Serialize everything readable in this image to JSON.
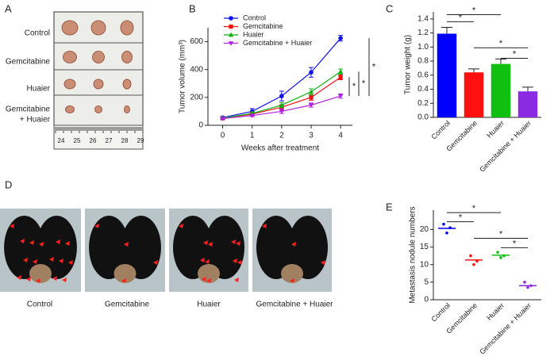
{
  "panel_labels": [
    "A",
    "B",
    "C",
    "D",
    "E"
  ],
  "photo_a": {
    "row_labels": [
      "Control",
      "Gemcitabine",
      "Huaier",
      "Gemcitabine",
      "+ Huaier"
    ],
    "ruler_ticks": [
      24,
      25,
      26,
      27,
      28,
      29
    ]
  },
  "photo_d": {
    "captions": [
      "Control",
      "Gemcitabine",
      "Huaier",
      "Gemcitabine + Huaier"
    ]
  },
  "chart_data": [
    {
      "type": "line",
      "x_label": "Weeks after treatment",
      "y_label": "Tumor volume (mm³)",
      "x": [
        0,
        1,
        2,
        3,
        4
      ],
      "xlim": [
        -0.5,
        4.4
      ],
      "xticks": [
        0,
        1,
        2,
        3,
        4
      ],
      "ylim": [
        0,
        700
      ],
      "yticks": [
        0,
        200,
        400,
        600
      ],
      "series": [
        {
          "name": "Control",
          "color": "#1010f0",
          "marker": "circle",
          "values": [
            55,
            100,
            210,
            380,
            625
          ],
          "errors": [
            8,
            20,
            35,
            35,
            20
          ]
        },
        {
          "name": "Gemcitabine",
          "color": "#f01010",
          "marker": "square",
          "values": [
            50,
            80,
            130,
            200,
            345
          ],
          "errors": [
            6,
            10,
            18,
            20,
            18
          ]
        },
        {
          "name": "Huaier",
          "color": "#10b010",
          "marker": "triangle",
          "values": [
            52,
            85,
            145,
            240,
            385
          ],
          "errors": [
            6,
            12,
            18,
            22,
            18
          ]
        },
        {
          "name": "Gemcitabine + Huaier",
          "color": "#b020e0",
          "marker": "triangle-down",
          "values": [
            48,
            70,
            100,
            145,
            210
          ],
          "errors": [
            6,
            8,
            15,
            15,
            15
          ]
        }
      ],
      "significance_labels": [
        "*",
        "*",
        "*"
      ]
    },
    {
      "type": "bar",
      "y_label": "Tumor weight (g)",
      "categories": [
        "Control",
        "Gemcitabine",
        "Huaier",
        "Gemcitabine + Huaier"
      ],
      "values": [
        1.19,
        0.64,
        0.76,
        0.37
      ],
      "errors": [
        0.09,
        0.05,
        0.07,
        0.06
      ],
      "colors": [
        "#0000ff",
        "#ff1010",
        "#10c010",
        "#8a2be2"
      ],
      "ylim": [
        0,
        1.5
      ],
      "yticks": [
        {
          "value": 0,
          "label": "0.0"
        },
        0.2,
        0.4,
        0.6,
        0.8,
        {
          "value": 1,
          "label": "1.0"
        },
        1.2,
        1.4
      ],
      "significance_labels": [
        "*",
        "*",
        "*",
        "*"
      ]
    },
    {
      "type": "dot",
      "y_label": "Metastasis nodule numbers",
      "categories": [
        "Control",
        "Gemcitabine",
        "Huaier",
        "Gemcitabine + Huaier"
      ],
      "points": [
        [
          21.5,
          20.5,
          19
        ],
        [
          12.5,
          11,
          10
        ],
        [
          13.5,
          12.5,
          12
        ],
        [
          5,
          4,
          3.5
        ]
      ],
      "means": [
        20.3,
        11.3,
        12.7,
        4
      ],
      "colors": [
        "#0000ff",
        "#ff1010",
        "#10c010",
        "#8a2be2"
      ],
      "ylim": [
        0,
        25.5
      ],
      "yticks": [
        0,
        5,
        10,
        15,
        20
      ],
      "significance_labels": [
        "*",
        "*",
        "*",
        "*"
      ]
    }
  ]
}
